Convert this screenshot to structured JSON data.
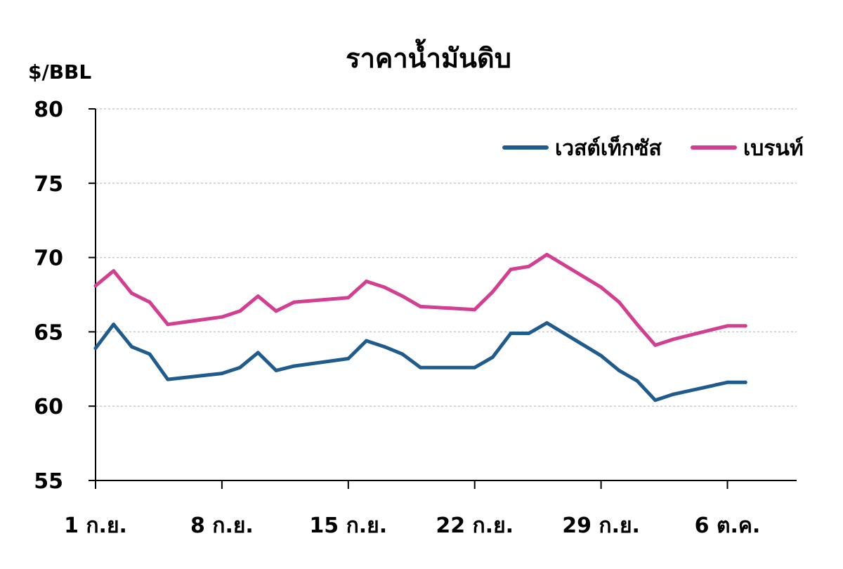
{
  "chart_data": {
    "type": "line",
    "title": "ราคาน้ำมันดิบ",
    "ylabel": "$/BBL",
    "ylim": [
      55,
      80
    ],
    "yticks": [
      55,
      60,
      65,
      70,
      75,
      80
    ],
    "grid": true,
    "legend_position": "top-right",
    "x_tick_labels": [
      {
        "day": 1,
        "label": "1 ก.ย."
      },
      {
        "day": 8,
        "label": "8 ก.ย."
      },
      {
        "day": 15,
        "label": "15 ก.ย."
      },
      {
        "day": 22,
        "label": "22 ก.ย."
      },
      {
        "day": 29,
        "label": "29 ก.ย."
      },
      {
        "day": 36,
        "label": "6 ต.ค."
      }
    ],
    "x": [
      1,
      2,
      3,
      4,
      5,
      8,
      9,
      10,
      11,
      12,
      15,
      16,
      17,
      18,
      19,
      22,
      23,
      24,
      25,
      26,
      29,
      30,
      31,
      32,
      33,
      36,
      37
    ],
    "series": [
      {
        "name": "เวสต์เท็กซัส",
        "color": "#1f5b8c",
        "values": [
          63.9,
          65.5,
          64.0,
          63.5,
          61.8,
          62.2,
          62.6,
          63.6,
          62.4,
          62.7,
          63.2,
          64.4,
          64.0,
          63.5,
          62.6,
          62.6,
          63.3,
          64.9,
          64.9,
          65.6,
          63.4,
          62.4,
          61.7,
          60.4,
          60.8,
          61.6,
          61.6
        ]
      },
      {
        "name": "เบรนท์",
        "color": "#d23f91",
        "values": [
          68.1,
          69.1,
          67.6,
          67.0,
          65.5,
          66.0,
          66.4,
          67.4,
          66.4,
          67.0,
          67.3,
          68.4,
          68.0,
          67.4,
          66.7,
          66.5,
          67.7,
          69.2,
          69.4,
          70.2,
          68.0,
          67.0,
          65.5,
          64.1,
          64.5,
          65.4,
          65.4
        ]
      }
    ]
  }
}
